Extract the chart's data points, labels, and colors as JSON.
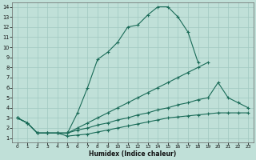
{
  "bg_color": "#c0e0d8",
  "grid_color": "#a0c8c0",
  "line_color": "#1a6b58",
  "xlabel": "Humidex (Indice chaleur)",
  "xlim": [
    -0.5,
    23.5
  ],
  "ylim": [
    0.6,
    14.4
  ],
  "xticks": [
    0,
    1,
    2,
    3,
    4,
    5,
    6,
    7,
    8,
    9,
    10,
    11,
    12,
    13,
    14,
    15,
    16,
    17,
    18,
    19,
    20,
    21,
    22,
    23
  ],
  "yticks": [
    1,
    2,
    3,
    4,
    5,
    6,
    7,
    8,
    9,
    10,
    11,
    12,
    13,
    14
  ],
  "curve1_x": [
    0,
    1,
    2,
    3,
    4,
    5,
    6,
    7,
    8,
    9,
    10,
    11,
    12,
    13,
    14,
    15,
    16,
    17,
    18
  ],
  "curve1_y": [
    3.0,
    2.5,
    1.5,
    1.5,
    1.5,
    1.5,
    3.5,
    6.0,
    8.8,
    9.5,
    10.5,
    12.0,
    12.2,
    13.2,
    14.0,
    14.0,
    13.0,
    11.5,
    8.5
  ],
  "curve2_x": [
    0,
    1,
    2,
    3,
    4,
    5,
    6,
    7,
    8,
    9,
    10,
    11,
    12,
    13,
    14,
    15,
    16,
    17,
    18,
    19
  ],
  "curve2_y": [
    3.0,
    2.5,
    1.5,
    1.5,
    1.5,
    1.5,
    2.0,
    2.5,
    3.0,
    3.5,
    4.0,
    4.5,
    5.0,
    5.5,
    6.0,
    6.5,
    7.0,
    7.5,
    8.0,
    8.5
  ],
  "curve3_x": [
    0,
    1,
    2,
    3,
    4,
    5,
    6,
    7,
    8,
    9,
    10,
    11,
    12,
    13,
    14,
    15,
    16,
    17,
    18,
    19,
    20,
    21,
    22,
    23
  ],
  "curve3_y": [
    3.0,
    2.5,
    1.5,
    1.5,
    1.5,
    1.5,
    1.8,
    2.0,
    2.3,
    2.5,
    2.8,
    3.0,
    3.3,
    3.5,
    3.8,
    4.0,
    4.3,
    4.5,
    4.8,
    5.0,
    6.5,
    5.0,
    4.5,
    4.0
  ],
  "curve4_x": [
    0,
    1,
    2,
    3,
    4,
    5,
    6,
    7,
    8,
    9,
    10,
    11,
    12,
    13,
    14,
    15,
    16,
    17,
    18,
    19,
    20,
    21,
    22,
    23
  ],
  "curve4_y": [
    3.0,
    2.5,
    1.5,
    1.5,
    1.5,
    1.2,
    1.3,
    1.4,
    1.6,
    1.8,
    2.0,
    2.2,
    2.4,
    2.6,
    2.8,
    3.0,
    3.1,
    3.2,
    3.3,
    3.4,
    3.5,
    3.5,
    3.5,
    3.5
  ]
}
